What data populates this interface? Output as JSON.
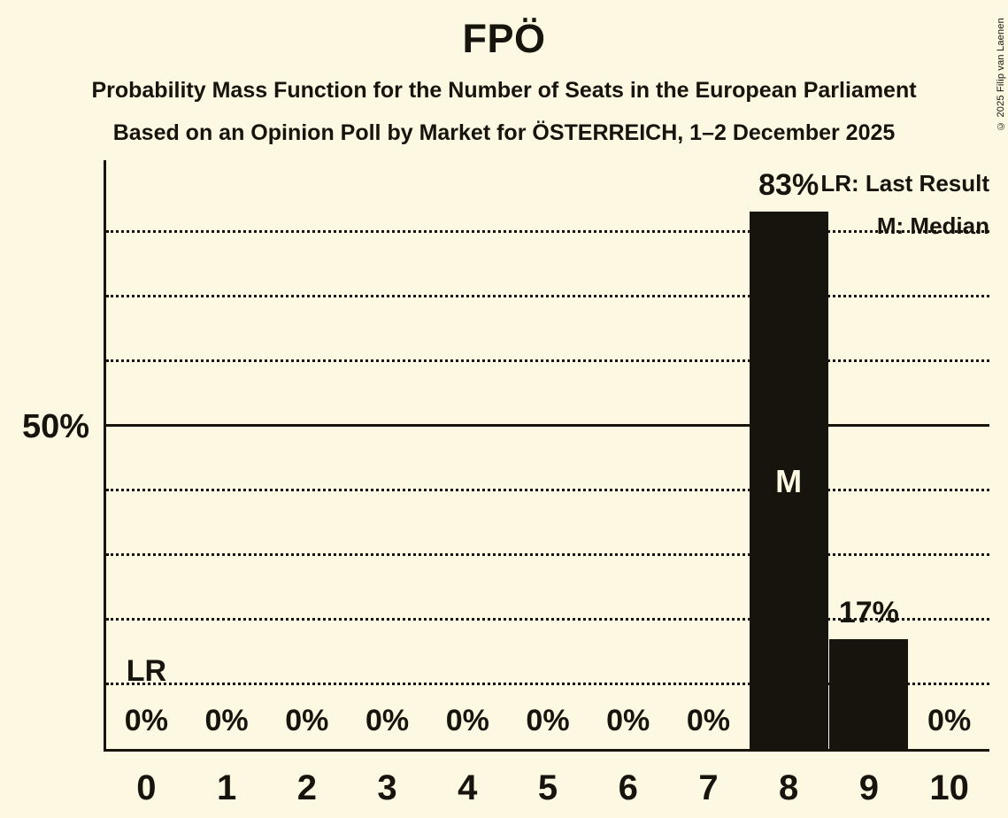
{
  "header": {
    "title": "FPÖ",
    "subtitle1": "Probability Mass Function for the Number of Seats in the European Parliament",
    "subtitle2": "Based on an Opinion Poll by Market for ÖSTERREICH, 1–2 December 2025",
    "copyright": "© 2025 Filip van Laenen"
  },
  "legend": {
    "last_result": "LR: Last Result",
    "median": "M: Median"
  },
  "colors": {
    "background": "#FCF8E2",
    "bar": "#16140C",
    "text": "#16140C",
    "median_label_on_bar": "#FCF8E2"
  },
  "chart_data": {
    "type": "bar",
    "title": "FPÖ",
    "categories": [
      "0",
      "1",
      "2",
      "3",
      "4",
      "5",
      "6",
      "7",
      "8",
      "9",
      "10"
    ],
    "values": [
      0,
      0,
      0,
      0,
      0,
      0,
      0,
      0,
      83,
      17,
      0
    ],
    "value_labels": [
      "0%",
      "0%",
      "0%",
      "0%",
      "0%",
      "0%",
      "0%",
      "0%",
      "83%",
      "17%",
      "0%"
    ],
    "xlabel": "",
    "ylabel": "",
    "ylim": [
      0,
      91
    ],
    "y_tick": {
      "value": 50,
      "label": "50%"
    },
    "gridlines_dotted": [
      10,
      20,
      30,
      40,
      60,
      70,
      80
    ],
    "gridline_solid": 50,
    "grid": "horizontal dotted",
    "legend_position": "top-right",
    "median_category": "8",
    "median_marker": "M",
    "last_result_category": "0",
    "last_result_marker": "LR"
  }
}
